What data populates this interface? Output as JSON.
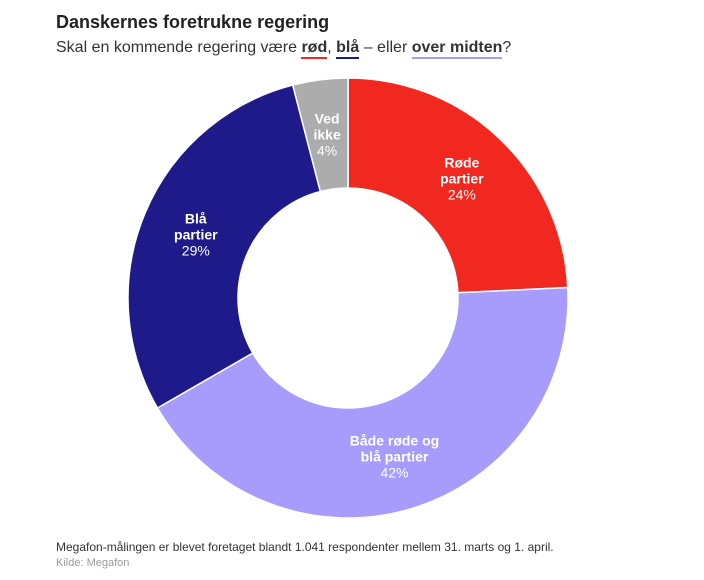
{
  "title": "Danskernes foretrukne regering",
  "subtitle": {
    "prefix": "Skal en kommende regering være ",
    "red": "rød",
    "sep1": ", ",
    "blue": "blå",
    "sep2": " – eller ",
    "purple": "over midten",
    "suffix": "?"
  },
  "chart_data": {
    "type": "pie",
    "donut": true,
    "start_angle_deg": 0,
    "direction": "clockwise",
    "slices": [
      {
        "label_lines": [
          "Røde",
          "partier"
        ],
        "value": 24,
        "value_label": "24%",
        "color": "#f0281f"
      },
      {
        "label_lines": [
          "Både røde og",
          "blå partier"
        ],
        "value": 42,
        "value_label": "42%",
        "color": "#a79cfc"
      },
      {
        "label_lines": [
          "Blå",
          "partier"
        ],
        "value": 29,
        "value_label": "29%",
        "color": "#1e1a8a"
      },
      {
        "label_lines": [
          "Ved",
          "ikke"
        ],
        "value": 4,
        "value_label": "4%",
        "color": "#acacac"
      }
    ]
  },
  "footnote": "Megafon-målingen er blevet foretaget blandt 1.041 respondenter mellem 31. marts og 1. april.",
  "source": "Kilde: Megafon"
}
